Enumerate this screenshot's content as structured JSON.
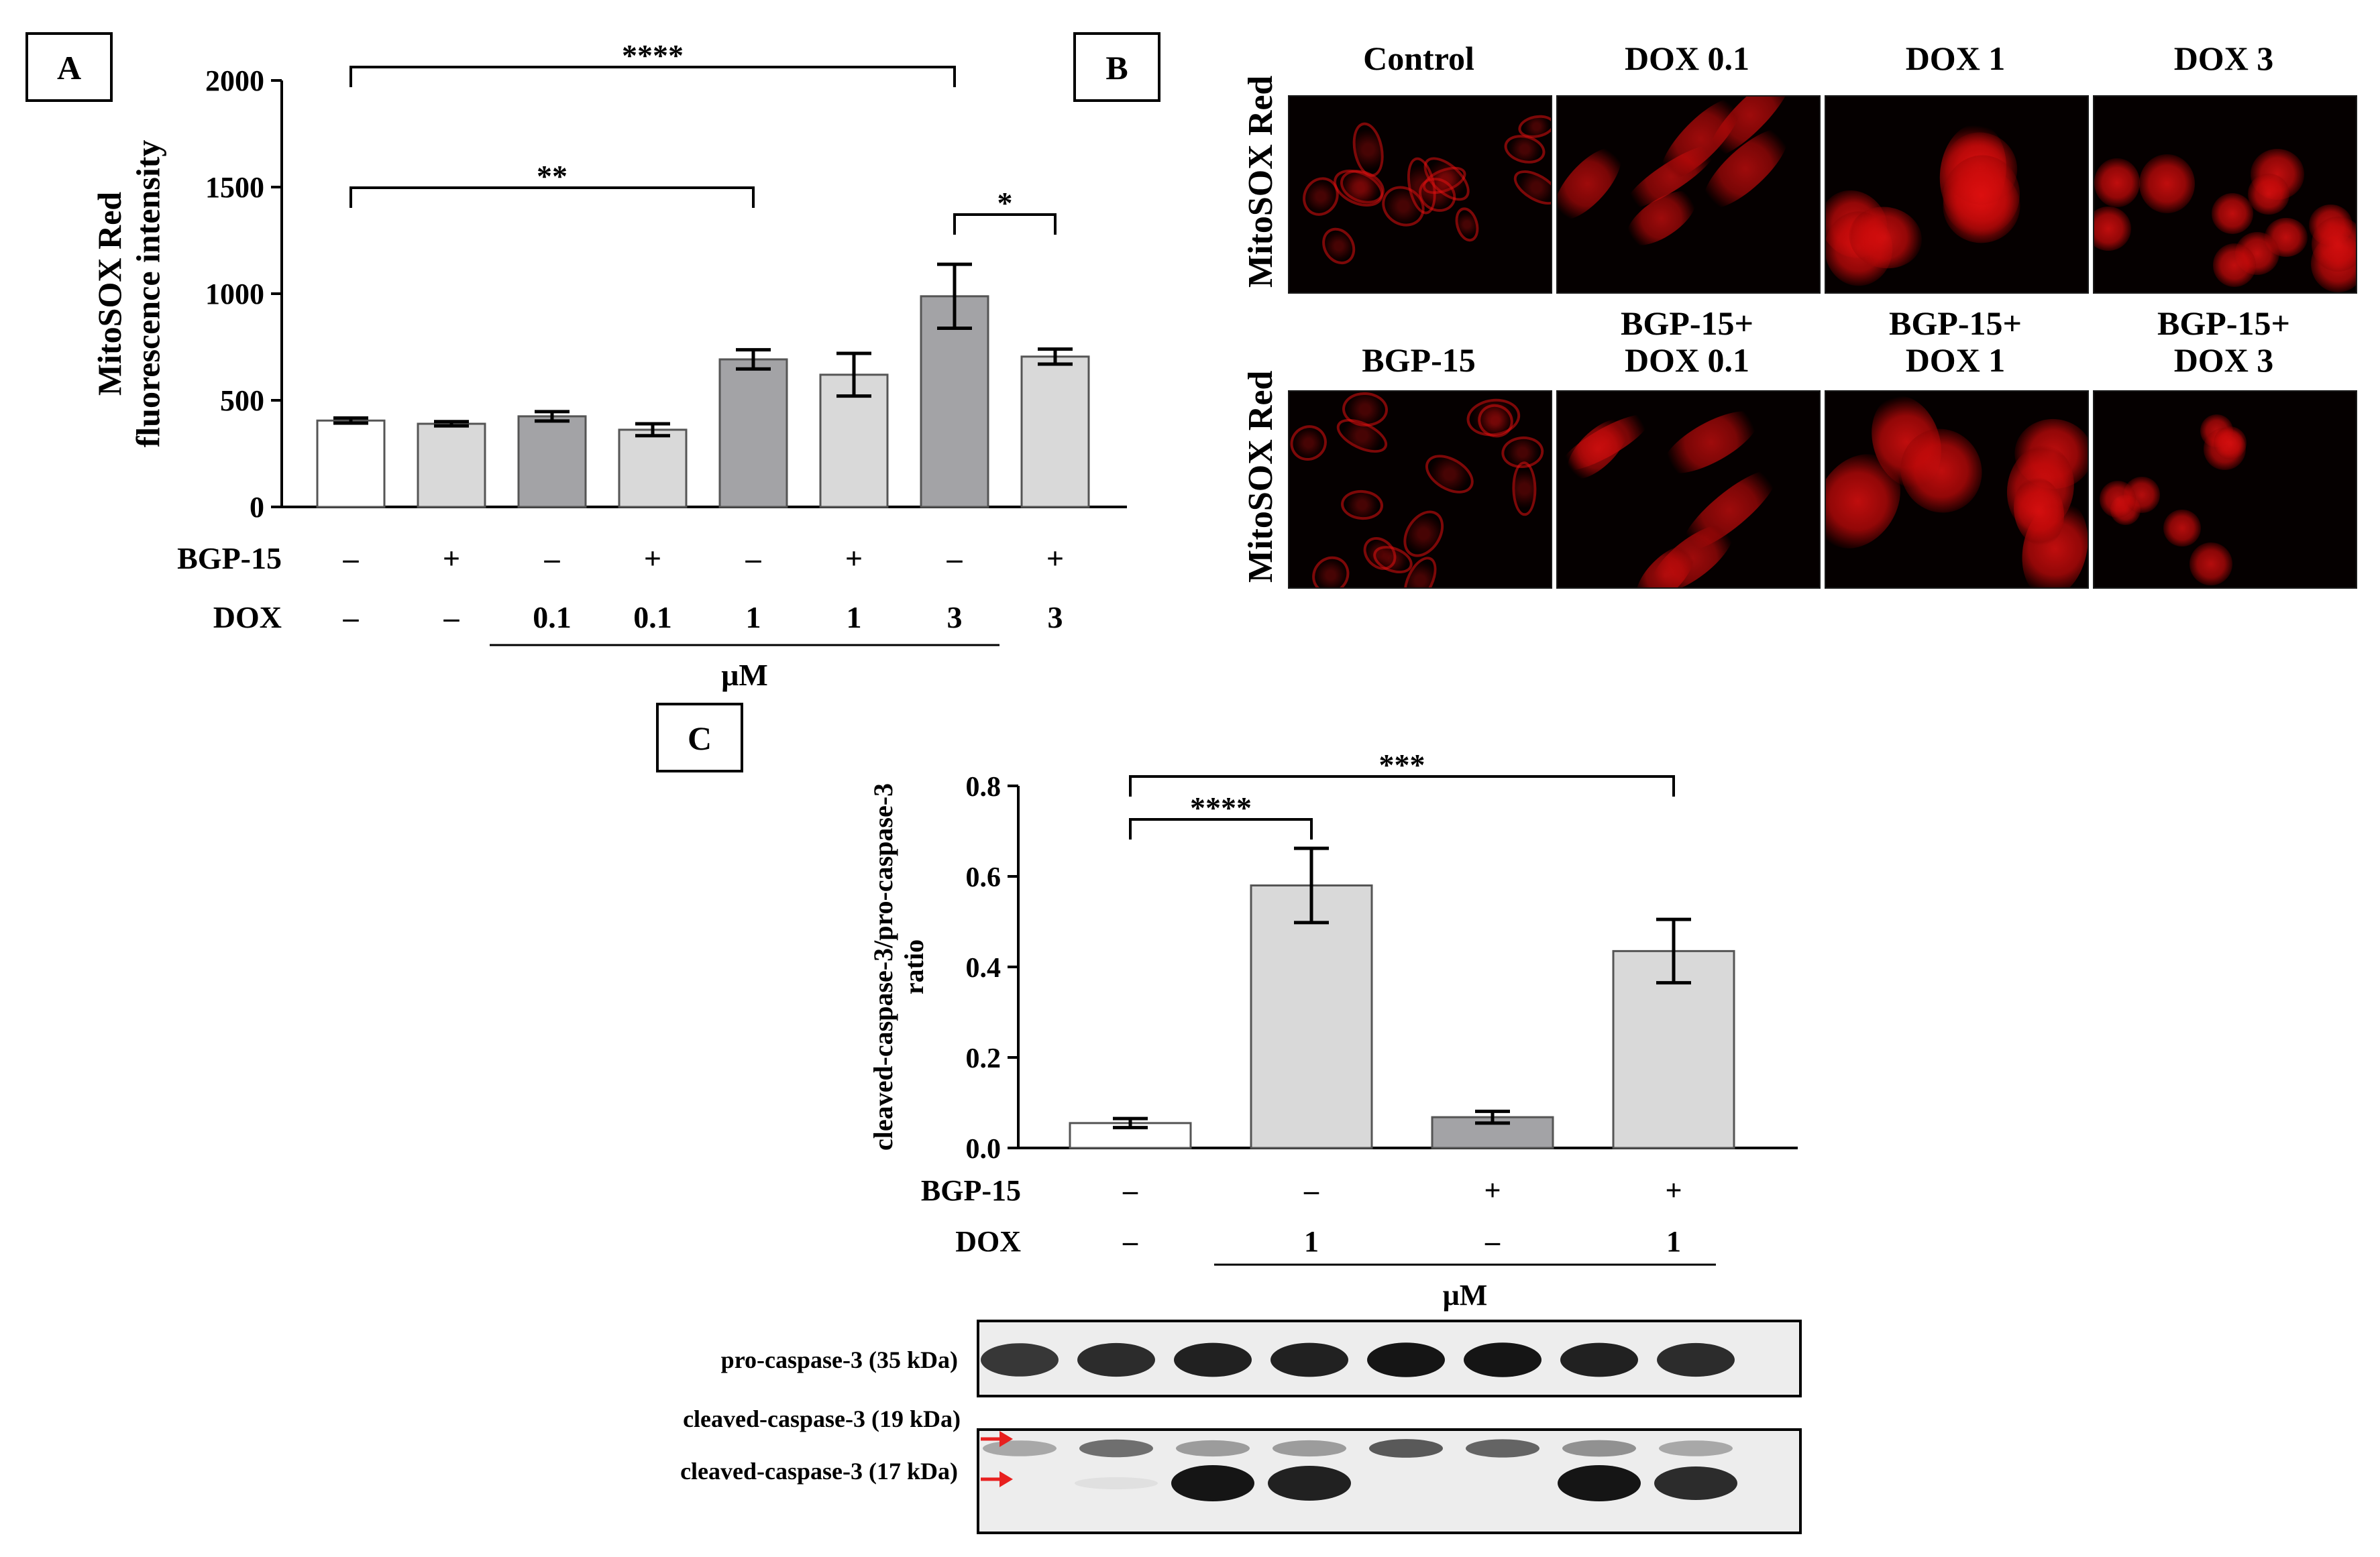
{
  "panels": {
    "A": {
      "label": "A"
    },
    "B": {
      "label": "B"
    },
    "C": {
      "label": "C"
    }
  },
  "colors": {
    "white_bar": "#ffffff",
    "light_bar": "#d9d9d9",
    "dark_bar": "#a3a3a6",
    "fluor": "#e01010",
    "arrow": "#e8201f"
  },
  "chart_data": [
    {
      "panel": "A",
      "type": "bar",
      "ylabel": "MitoSOX Red fluorescence intensity",
      "ylabel_lines": [
        "MitoSOX Red",
        "fluorescence intensity"
      ],
      "ylim": [
        0,
        2000
      ],
      "yticks": [
        "0",
        "500",
        "1000",
        "1500",
        "2000"
      ],
      "values": [
        405,
        390,
        425,
        362,
        692,
        620,
        988,
        705
      ],
      "errors": [
        12,
        10,
        22,
        28,
        45,
        100,
        150,
        35
      ],
      "bar_colors": [
        "white",
        "light",
        "dark",
        "light",
        "dark",
        "light",
        "dark",
        "light"
      ],
      "treatment_rows": [
        {
          "name": "BGP-15",
          "values": [
            "–",
            "+",
            "–",
            "+",
            "–",
            "+",
            "–",
            "+"
          ]
        },
        {
          "name": "DOX",
          "values": [
            "–",
            "–",
            "0.1",
            "0.1",
            "1",
            "1",
            "3",
            "3"
          ]
        }
      ],
      "unit": "μM",
      "significance": [
        {
          "from": 0,
          "to": 6,
          "label": "****"
        },
        {
          "from": 0,
          "to": 4,
          "label": "**"
        },
        {
          "from": 6,
          "to": 7,
          "label": "*"
        }
      ]
    },
    {
      "panel": "C",
      "type": "bar",
      "ylabel": "cleaved-caspase-3/pro-caspase-3 ratio",
      "ylabel_lines": [
        "cleaved-caspase-3/pro-caspase-3",
        "ratio"
      ],
      "ylim": [
        0,
        0.8
      ],
      "yticks": [
        "0.0",
        "0.2",
        "0.4",
        "0.6",
        "0.8"
      ],
      "values": [
        0.055,
        0.58,
        0.068,
        0.435
      ],
      "errors": [
        0.01,
        0.082,
        0.013,
        0.07
      ],
      "bar_colors": [
        "white",
        "light",
        "dark",
        "light"
      ],
      "treatment_rows": [
        {
          "name": "BGP-15",
          "values": [
            "–",
            "–",
            "+",
            "+"
          ]
        },
        {
          "name": "DOX",
          "values": [
            "–",
            "1",
            "–",
            "1"
          ]
        }
      ],
      "unit": "μM",
      "significance": [
        {
          "from": 0,
          "to": 3,
          "label": "***"
        },
        {
          "from": 0,
          "to": 1,
          "label": "****"
        }
      ]
    }
  ],
  "microscopy": {
    "row_label": "MitoSOX Red",
    "columns": [
      {
        "title": "Control",
        "style": "sparse"
      },
      {
        "title": "DOX 0.1",
        "style": "elongated"
      },
      {
        "title": "DOX 1",
        "style": "bright"
      },
      {
        "title": "DOX 3",
        "style": "round"
      },
      {
        "title": "BGP-15",
        "style": "sparse"
      },
      {
        "title": "BGP-15+\nDOX 0.1",
        "style": "elongated"
      },
      {
        "title": "BGP-15+\nDOX 1",
        "style": "bright"
      },
      {
        "title": "BGP-15+\nDOX 3",
        "style": "small"
      }
    ]
  },
  "western_blot": {
    "labels": [
      "pro-caspase-3 (35 kDa)",
      "cleaved-caspase-3 (19 kDa)",
      "cleaved-caspase-3 (17 kDa)"
    ],
    "lanes": 8,
    "pro_intensity": [
      0.8,
      0.85,
      0.9,
      0.9,
      0.95,
      0.95,
      0.9,
      0.85
    ],
    "c19_intensity": [
      0.3,
      0.55,
      0.35,
      0.35,
      0.65,
      0.6,
      0.4,
      0.3
    ],
    "c17_intensity": [
      0.0,
      0.05,
      0.95,
      0.9,
      0.0,
      0.0,
      0.95,
      0.85
    ]
  }
}
